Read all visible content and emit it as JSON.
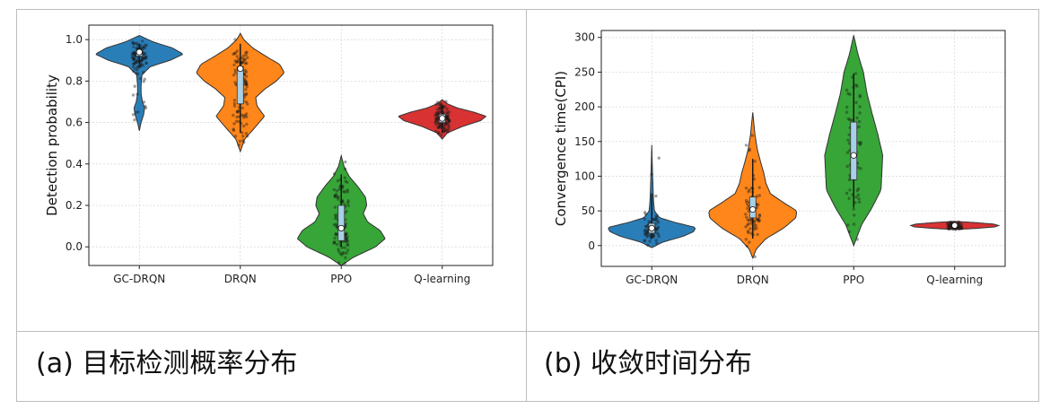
{
  "captions": {
    "a": "(a) 目标检测概率分布",
    "b": "(b) 收敛时间分布"
  },
  "colors": {
    "GC-DRQN": "#1f77b4",
    "DRQN": "#ff7f0e",
    "PPO": "#2ca02c",
    "Q-learning": "#d62728"
  },
  "chart_data": [
    {
      "type": "violin",
      "title": "",
      "xlabel": "",
      "ylabel": "Detection probability",
      "categories": [
        "GC-DRQN",
        "DRQN",
        "PPO",
        "Q-learning"
      ],
      "ylim": [
        -0.09,
        1.07
      ],
      "yticks": [
        0.0,
        0.2,
        0.4,
        0.6,
        0.8,
        1.0
      ],
      "ytick_labels": [
        "0.0",
        "0.2",
        "0.4",
        "0.6",
        "0.8",
        "1.0"
      ],
      "grid": true,
      "series": [
        {
          "category": "GC-DRQN",
          "min": 0.56,
          "max": 1.02,
          "q1": 0.92,
          "median": 0.94,
          "q3": 0.95,
          "whisker_low": 0.88,
          "whisker_high": 0.98,
          "density": [
            [
              0.56,
              0.0
            ],
            [
              0.6,
              0.04
            ],
            [
              0.64,
              0.1
            ],
            [
              0.67,
              0.12
            ],
            [
              0.7,
              0.07
            ],
            [
              0.74,
              0.04
            ],
            [
              0.78,
              0.04
            ],
            [
              0.83,
              0.06
            ],
            [
              0.87,
              0.25
            ],
            [
              0.9,
              0.7
            ],
            [
              0.93,
              1.0
            ],
            [
              0.96,
              0.75
            ],
            [
              0.99,
              0.3
            ],
            [
              1.02,
              0.0
            ]
          ]
        },
        {
          "category": "DRQN",
          "min": 0.46,
          "max": 1.03,
          "q1": 0.69,
          "median": 0.86,
          "q3": 0.87,
          "whisker_low": 0.55,
          "whisker_high": 0.98,
          "density": [
            [
              0.46,
              0.0
            ],
            [
              0.52,
              0.1
            ],
            [
              0.58,
              0.35
            ],
            [
              0.63,
              0.55
            ],
            [
              0.68,
              0.38
            ],
            [
              0.72,
              0.35
            ],
            [
              0.76,
              0.55
            ],
            [
              0.8,
              0.82
            ],
            [
              0.84,
              1.0
            ],
            [
              0.88,
              0.9
            ],
            [
              0.92,
              0.58
            ],
            [
              0.96,
              0.28
            ],
            [
              1.0,
              0.08
            ],
            [
              1.03,
              0.0
            ]
          ]
        },
        {
          "category": "PPO",
          "min": -0.09,
          "max": 0.44,
          "q1": 0.03,
          "median": 0.09,
          "q3": 0.2,
          "whisker_low": 0.0,
          "whisker_high": 0.35,
          "density": [
            [
              -0.09,
              0.0
            ],
            [
              -0.05,
              0.28
            ],
            [
              0.0,
              0.78
            ],
            [
              0.04,
              1.0
            ],
            [
              0.08,
              0.88
            ],
            [
              0.12,
              0.6
            ],
            [
              0.16,
              0.5
            ],
            [
              0.2,
              0.58
            ],
            [
              0.24,
              0.55
            ],
            [
              0.29,
              0.38
            ],
            [
              0.34,
              0.18
            ],
            [
              0.39,
              0.06
            ],
            [
              0.44,
              0.0
            ]
          ]
        },
        {
          "category": "Q-learning",
          "min": 0.52,
          "max": 0.71,
          "q1": 0.6,
          "median": 0.62,
          "q3": 0.64,
          "whisker_low": 0.55,
          "whisker_high": 0.68,
          "density": [
            [
              0.52,
              0.0
            ],
            [
              0.55,
              0.12
            ],
            [
              0.58,
              0.45
            ],
            [
              0.61,
              0.88
            ],
            [
              0.63,
              1.0
            ],
            [
              0.65,
              0.72
            ],
            [
              0.67,
              0.35
            ],
            [
              0.69,
              0.12
            ],
            [
              0.71,
              0.0
            ]
          ]
        }
      ]
    },
    {
      "type": "violin",
      "title": "",
      "xlabel": "",
      "ylabel": "Convergence time(CPI)",
      "categories": [
        "GC-DRQN",
        "DRQN",
        "PPO",
        "Q-learning"
      ],
      "ylim": [
        -30,
        310
      ],
      "yticks": [
        0,
        50,
        100,
        150,
        200,
        250,
        300
      ],
      "ytick_labels": [
        "0",
        "50",
        "100",
        "150",
        "200",
        "250",
        "300"
      ],
      "grid": true,
      "series": [
        {
          "category": "GC-DRQN",
          "min": -3,
          "max": 145,
          "q1": 18,
          "median": 25,
          "q3": 32,
          "whisker_low": 10,
          "whisker_high": 75,
          "density": [
            [
              -3,
              0.0
            ],
            [
              5,
              0.25
            ],
            [
              13,
              0.7
            ],
            [
              20,
              0.95
            ],
            [
              26,
              1.0
            ],
            [
              33,
              0.55
            ],
            [
              40,
              0.18
            ],
            [
              50,
              0.06
            ],
            [
              65,
              0.04
            ],
            [
              80,
              0.03
            ],
            [
              100,
              0.02
            ],
            [
              120,
              0.01
            ],
            [
              145,
              0.0
            ]
          ]
        },
        {
          "category": "DRQN",
          "min": -18,
          "max": 192,
          "q1": 40,
          "median": 52,
          "q3": 70,
          "whisker_low": 10,
          "whisker_high": 125,
          "density": [
            [
              -18,
              0.0
            ],
            [
              -5,
              0.08
            ],
            [
              10,
              0.3
            ],
            [
              25,
              0.7
            ],
            [
              40,
              0.98
            ],
            [
              50,
              1.0
            ],
            [
              62,
              0.7
            ],
            [
              75,
              0.4
            ],
            [
              90,
              0.3
            ],
            [
              105,
              0.25
            ],
            [
              120,
              0.18
            ],
            [
              140,
              0.1
            ],
            [
              160,
              0.05
            ],
            [
              192,
              0.0
            ]
          ]
        },
        {
          "category": "PPO",
          "min": 0,
          "max": 303,
          "q1": 95,
          "median": 130,
          "q3": 178,
          "whisker_low": 55,
          "whisker_high": 248,
          "density": [
            [
              0,
              0.0
            ],
            [
              30,
              0.18
            ],
            [
              55,
              0.42
            ],
            [
              80,
              0.62
            ],
            [
              105,
              0.64
            ],
            [
              130,
              0.66
            ],
            [
              160,
              0.55
            ],
            [
              190,
              0.42
            ],
            [
              220,
              0.3
            ],
            [
              250,
              0.22
            ],
            [
              275,
              0.1
            ],
            [
              303,
              0.0
            ]
          ]
        },
        {
          "category": "Q-learning",
          "min": 23,
          "max": 35,
          "q1": 27,
          "median": 29,
          "q3": 31,
          "whisker_low": 24,
          "whisker_high": 34,
          "density": [
            [
              23,
              0.0
            ],
            [
              25,
              0.55
            ],
            [
              27,
              0.92
            ],
            [
              29,
              1.0
            ],
            [
              31,
              0.88
            ],
            [
              33,
              0.5
            ],
            [
              35,
              0.0
            ]
          ]
        }
      ]
    }
  ]
}
